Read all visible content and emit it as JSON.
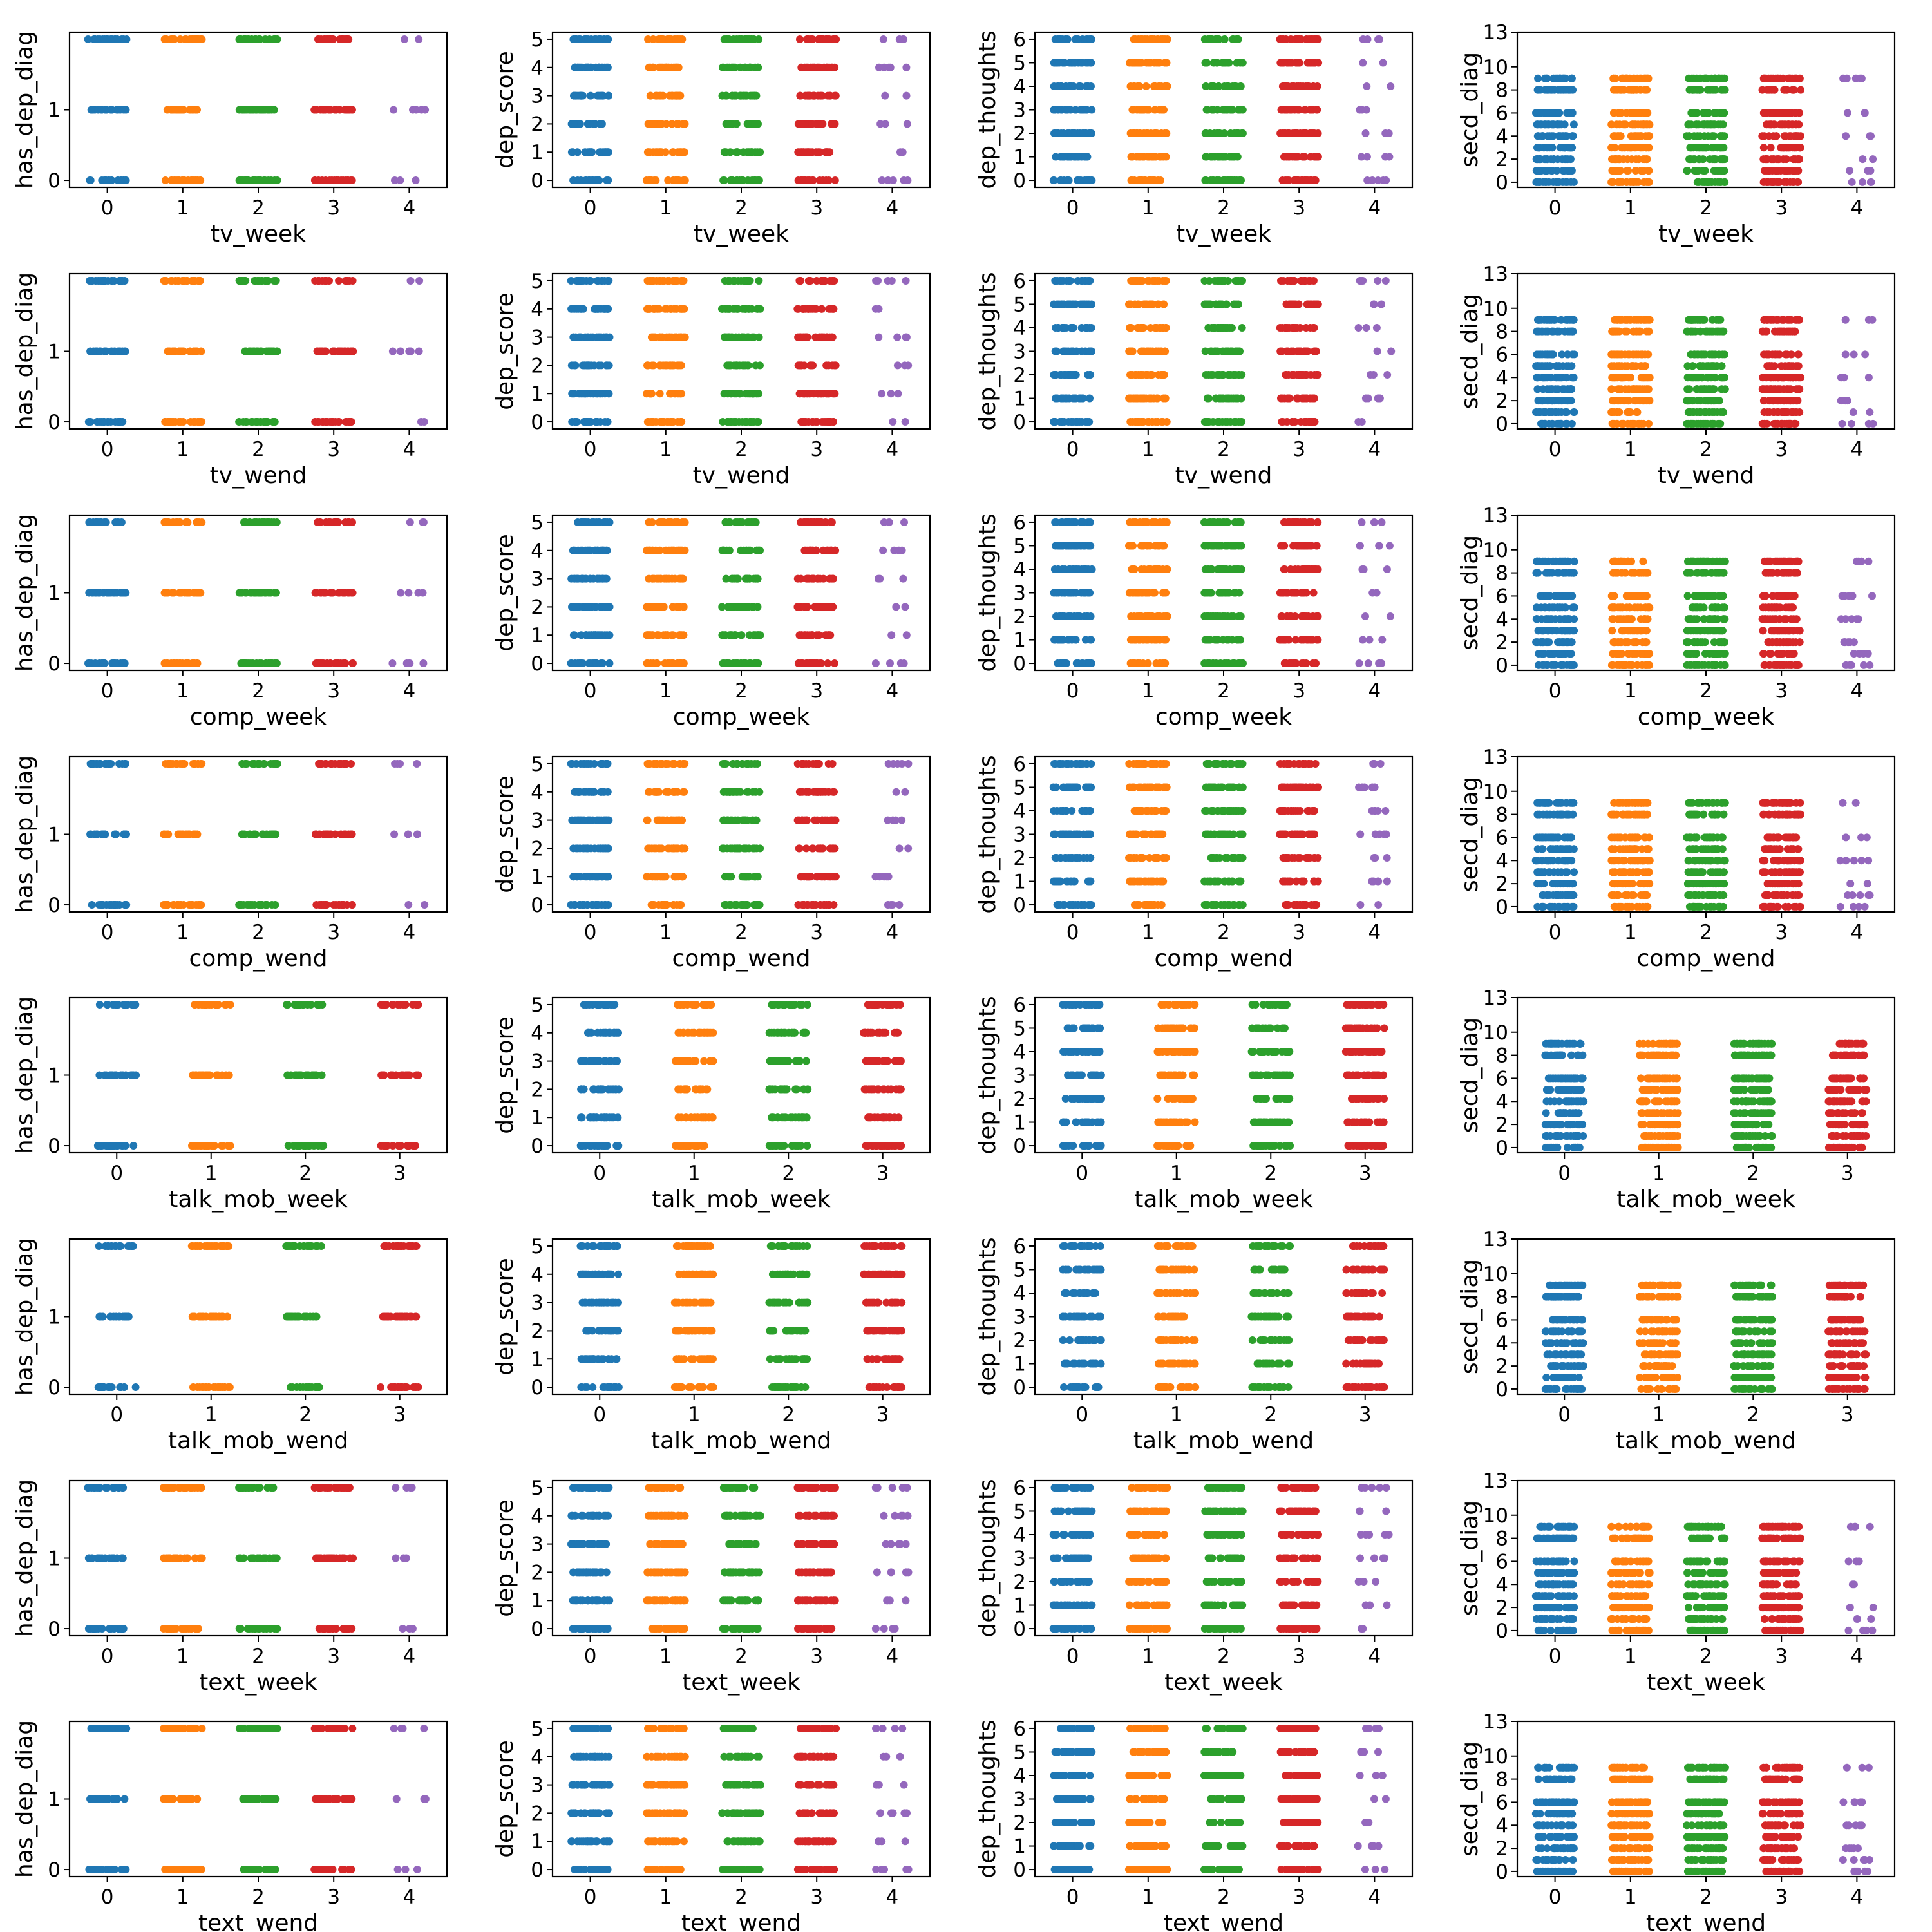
{
  "palette": [
    "#1f77b4",
    "#ff7f0e",
    "#2ca02c",
    "#d62728",
    "#9467bd"
  ],
  "chart_data": {
    "type": "scatter",
    "style": "strip plot grid (8 rows x 4 columns), horizontal jitter per category",
    "rows": [
      {
        "xlabel": "tv_week",
        "categories": [
          0,
          1,
          2,
          3,
          4
        ]
      },
      {
        "xlabel": "tv_wend",
        "categories": [
          0,
          1,
          2,
          3,
          4
        ]
      },
      {
        "xlabel": "comp_week",
        "categories": [
          0,
          1,
          2,
          3,
          4
        ]
      },
      {
        "xlabel": "comp_wend",
        "categories": [
          0,
          1,
          2,
          3,
          4
        ]
      },
      {
        "xlabel": "talk_mob_week",
        "categories": [
          0,
          1,
          2,
          3
        ]
      },
      {
        "xlabel": "talk_mob_wend",
        "categories": [
          0,
          1,
          2,
          3
        ]
      },
      {
        "xlabel": "text_week",
        "categories": [
          0,
          1,
          2,
          3,
          4
        ]
      },
      {
        "xlabel": "text_wend",
        "categories": [
          0,
          1,
          2,
          3,
          4
        ]
      }
    ],
    "columns": [
      {
        "ylabel": "has_dep_diag",
        "ylim": [
          -0.1,
          2.1
        ],
        "yticks": [
          0,
          1
        ],
        "levels": [
          0,
          1,
          2
        ]
      },
      {
        "ylabel": "dep_score",
        "ylim": [
          -0.25,
          5.25
        ],
        "yticks": [
          0,
          1,
          2,
          3,
          4,
          5
        ],
        "levels": [
          0,
          1,
          2,
          3,
          4,
          5
        ]
      },
      {
        "ylabel": "dep_thoughts",
        "ylim": [
          -0.3,
          6.3
        ],
        "yticks": [
          0,
          1,
          2,
          3,
          4,
          5,
          6
        ],
        "levels": [
          0,
          1,
          2,
          3,
          4,
          5,
          6
        ]
      },
      {
        "ylabel": "secd_diag",
        "ylim": [
          -0.45,
          13.0
        ],
        "yticks": [
          0,
          2,
          4,
          6,
          8,
          10,
          13
        ],
        "levels": [
          0,
          1,
          2,
          3,
          4,
          5,
          6,
          8,
          9
        ]
      }
    ],
    "sparse_last_category": {
      "has_dep_diag": [
        0,
        1,
        2
      ],
      "dep_score": [
        0,
        1,
        2,
        3,
        4,
        5
      ],
      "dep_thoughts": [
        0,
        1,
        2,
        3,
        4,
        5,
        6
      ],
      "secd_diag": [
        0,
        1,
        2,
        4,
        6,
        9
      ]
    },
    "grid": false,
    "legend": "none"
  }
}
